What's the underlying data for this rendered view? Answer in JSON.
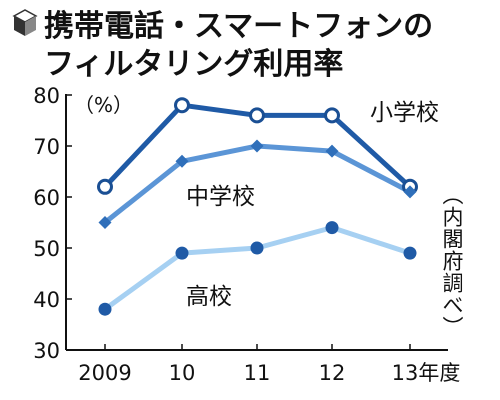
{
  "chart_data": {
    "type": "line",
    "title_lines": [
      "携帯電話・スマートフォンの",
      "フィルタリング利用率"
    ],
    "title_icon": "cube-icon",
    "categories": [
      "2009",
      "10",
      "11",
      "12",
      "13年度"
    ],
    "unit": "（%）",
    "source": "（内閣府調べ）",
    "ylim": [
      30,
      80
    ],
    "yticks": [
      30,
      40,
      50,
      60,
      70,
      80
    ],
    "grid": false,
    "series": [
      {
        "name": "小学校",
        "values": [
          62,
          78,
          76,
          76,
          62
        ],
        "color": "#1f5aa6",
        "marker": "hollow-circle"
      },
      {
        "name": "中学校",
        "values": [
          55,
          67,
          70,
          69,
          61
        ],
        "color": "#5b95d6",
        "marker": "diamond"
      },
      {
        "name": "高校",
        "values": [
          38,
          49,
          50,
          54,
          49
        ],
        "color": "#a6d0f2",
        "marker": "filled-circle"
      }
    ]
  }
}
